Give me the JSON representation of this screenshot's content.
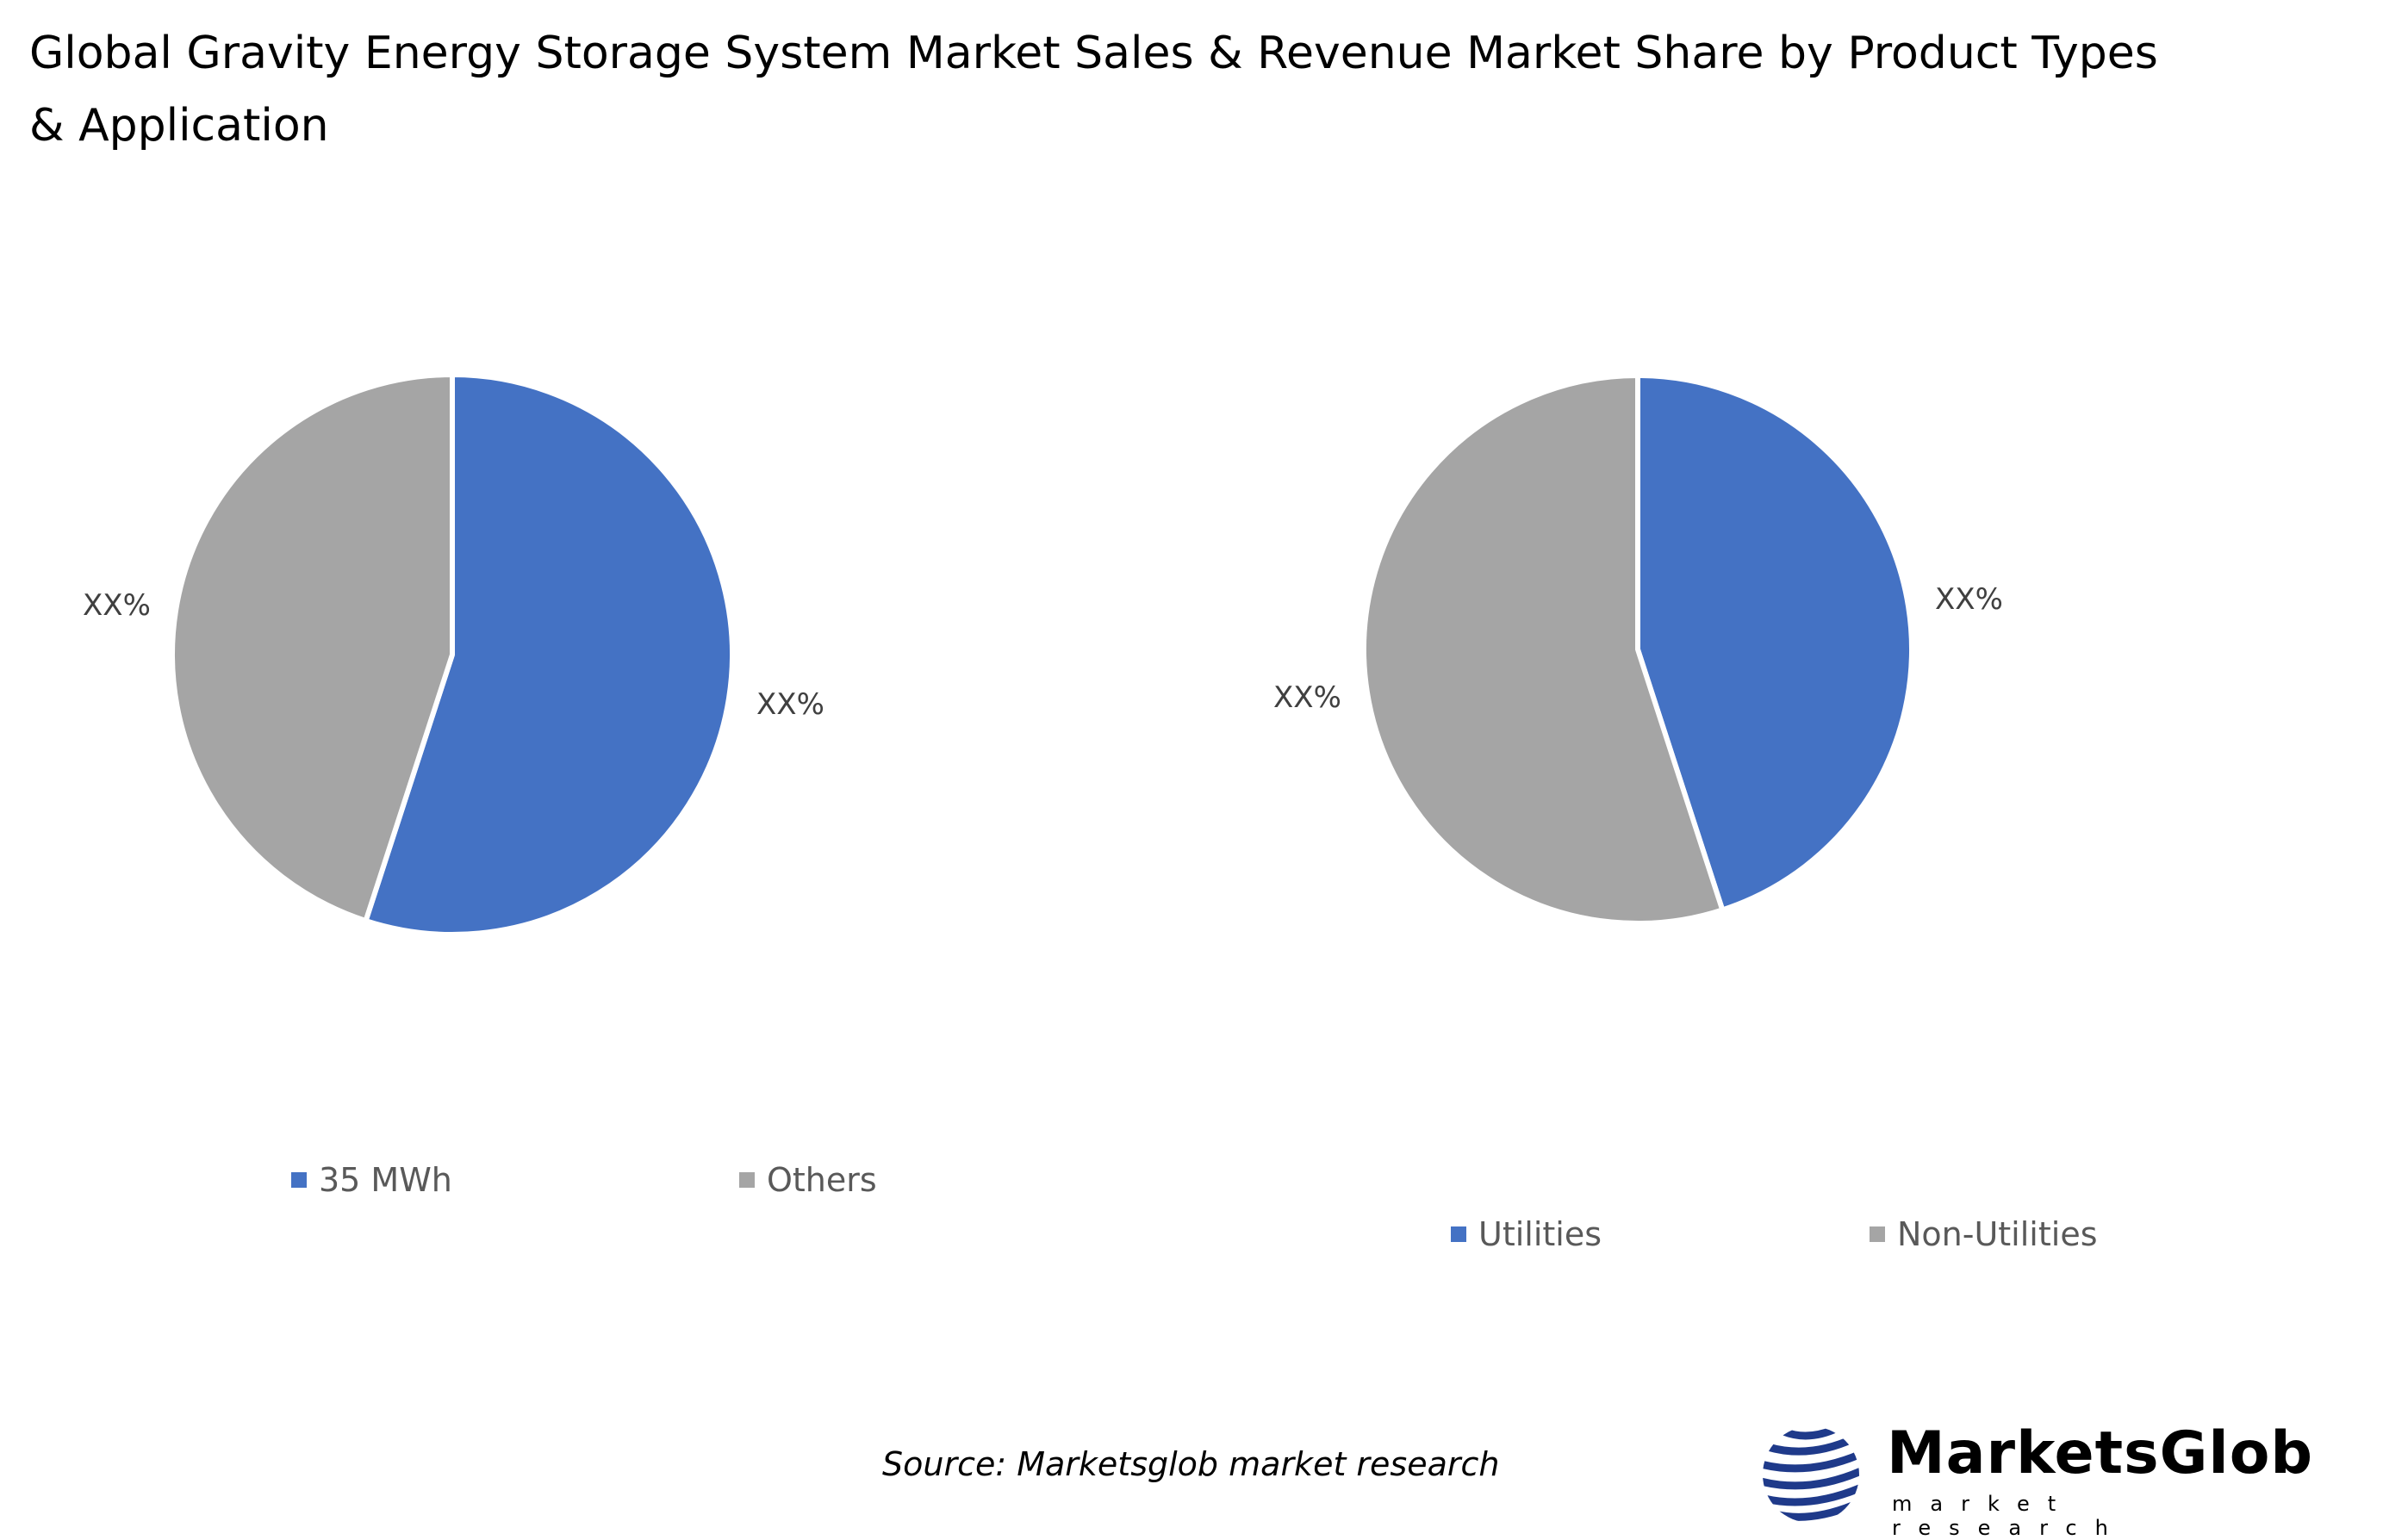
{
  "title": "Global Gravity Energy Storage System Market Sales & Revenue Market Share by Product Types & Application",
  "title_line1": "Global Gravity Energy Storage System Market Sales & Revenue Market Share by Product Types",
  "title_line2": "& Application",
  "colors": {
    "blue": "#4472C4",
    "grey": "#A5A5A5",
    "label": "#404040",
    "legend_text": "#595959"
  },
  "charts": {
    "left": {
      "slices": [
        {
          "name": "35 MWh",
          "label": "XX%",
          "color": "#4472C4"
        },
        {
          "name": "Others",
          "label": "XX%",
          "color": "#A5A5A5"
        }
      ],
      "legend": [
        "35 MWh",
        "Others"
      ]
    },
    "right": {
      "slices": [
        {
          "name": "Utilities",
          "label": "XX%",
          "color": "#4472C4"
        },
        {
          "name": "Non-Utilities",
          "label": "XX%",
          "color": "#A5A5A5"
        }
      ],
      "legend": [
        "Utilities",
        "Non-Utilities"
      ]
    }
  },
  "chart_data": [
    {
      "type": "pie",
      "title": "Product Types",
      "categories": [
        "35 MWh",
        "Others"
      ],
      "values": [
        55,
        45
      ],
      "data_labels": [
        "XX%",
        "XX%"
      ],
      "colors": [
        "#4472C4",
        "#A5A5A5"
      ],
      "legend_position": "bottom",
      "note": "Values estimated from slice angles; labels displayed as XX%"
    },
    {
      "type": "pie",
      "title": "Application",
      "categories": [
        "Utilities",
        "Non-Utilities"
      ],
      "values": [
        45,
        55
      ],
      "data_labels": [
        "XX%",
        "XX%"
      ],
      "colors": [
        "#4472C4",
        "#A5A5A5"
      ],
      "legend_position": "bottom",
      "note": "Values estimated from slice angles; labels displayed as XX%"
    }
  ],
  "footer": {
    "source": "Source: Marketsglob market research",
    "logo_brand": "MarketsGlob",
    "logo_tagline": "market research"
  }
}
